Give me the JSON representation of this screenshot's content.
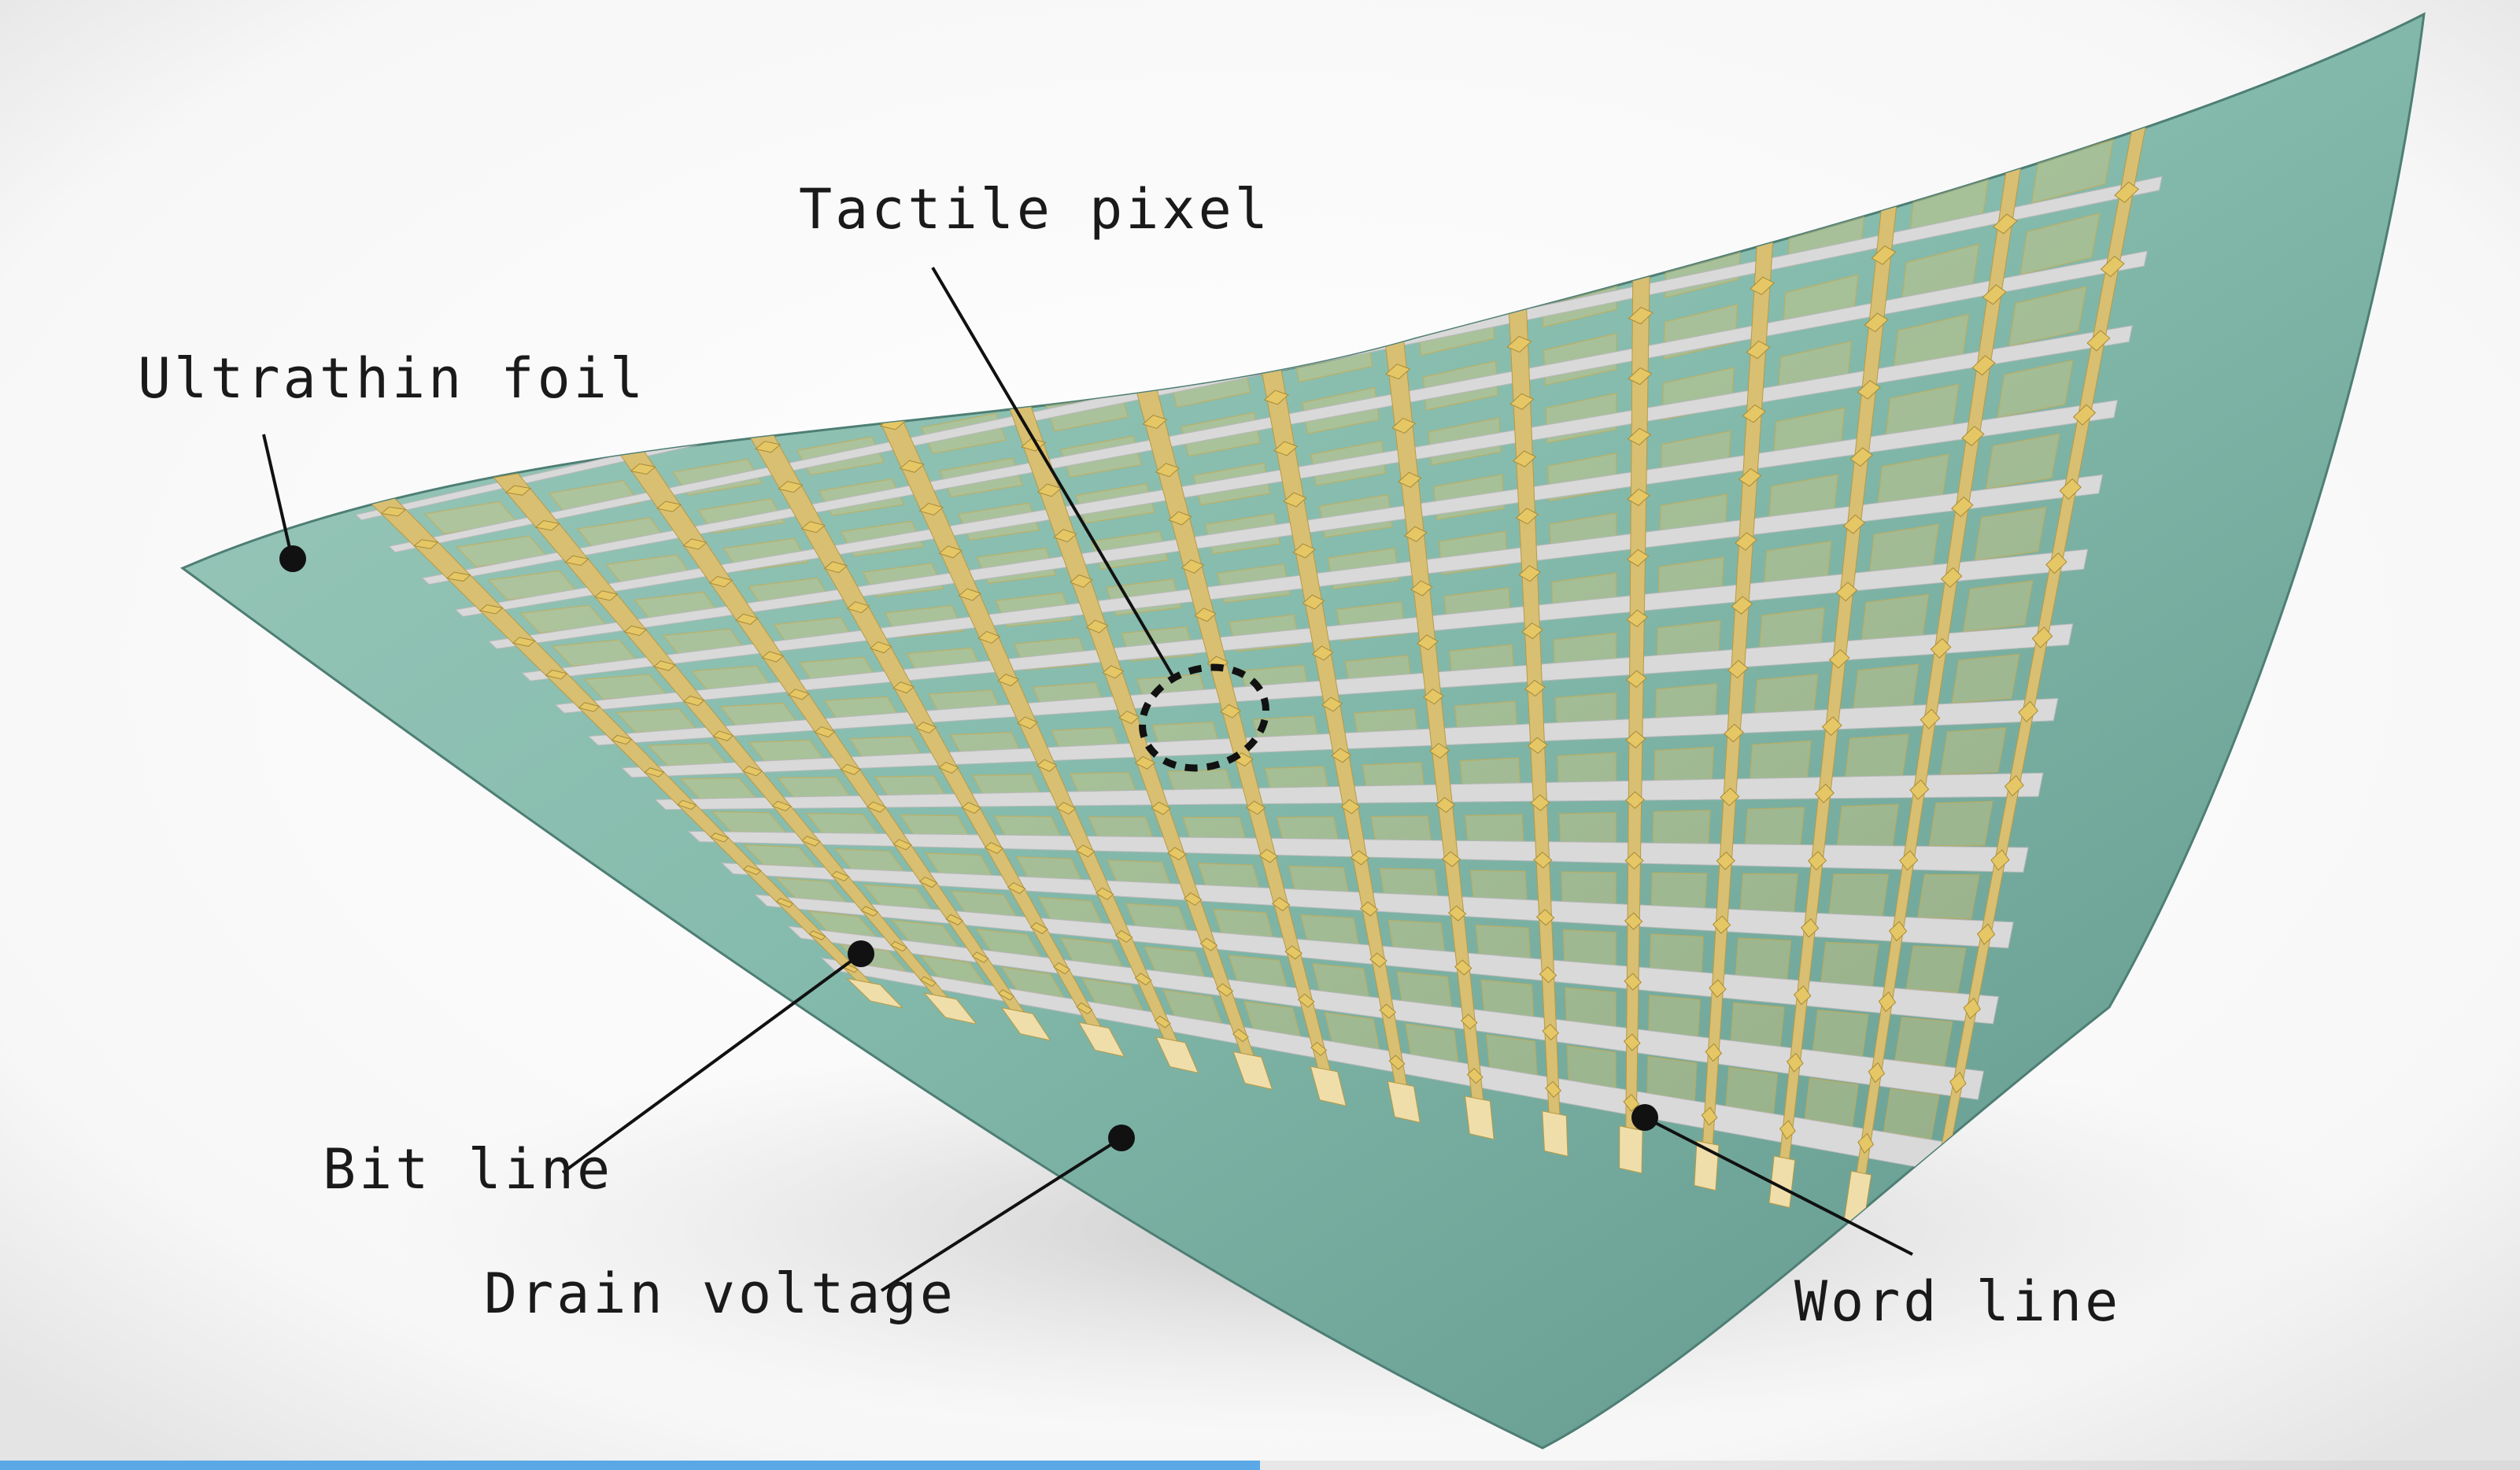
{
  "labels": {
    "tactile_pixel": "Tactile pixel",
    "ultrathin_foil": "Ultrathin foil",
    "bit_line": "Bit line",
    "drain_voltage": "Drain voltage",
    "word_line": "Word line"
  },
  "colors": {
    "foil": "#7fb5a6",
    "foil_dark": "#5f968a",
    "gold": "#d8bf72",
    "gold_light": "#f0deaa",
    "silver": "#d9d9d9",
    "callout": "#111111",
    "progress": "#5aa9e6"
  },
  "grid": {
    "word_lines": 15,
    "bit_lines": 15
  },
  "video_progress": 0.5
}
